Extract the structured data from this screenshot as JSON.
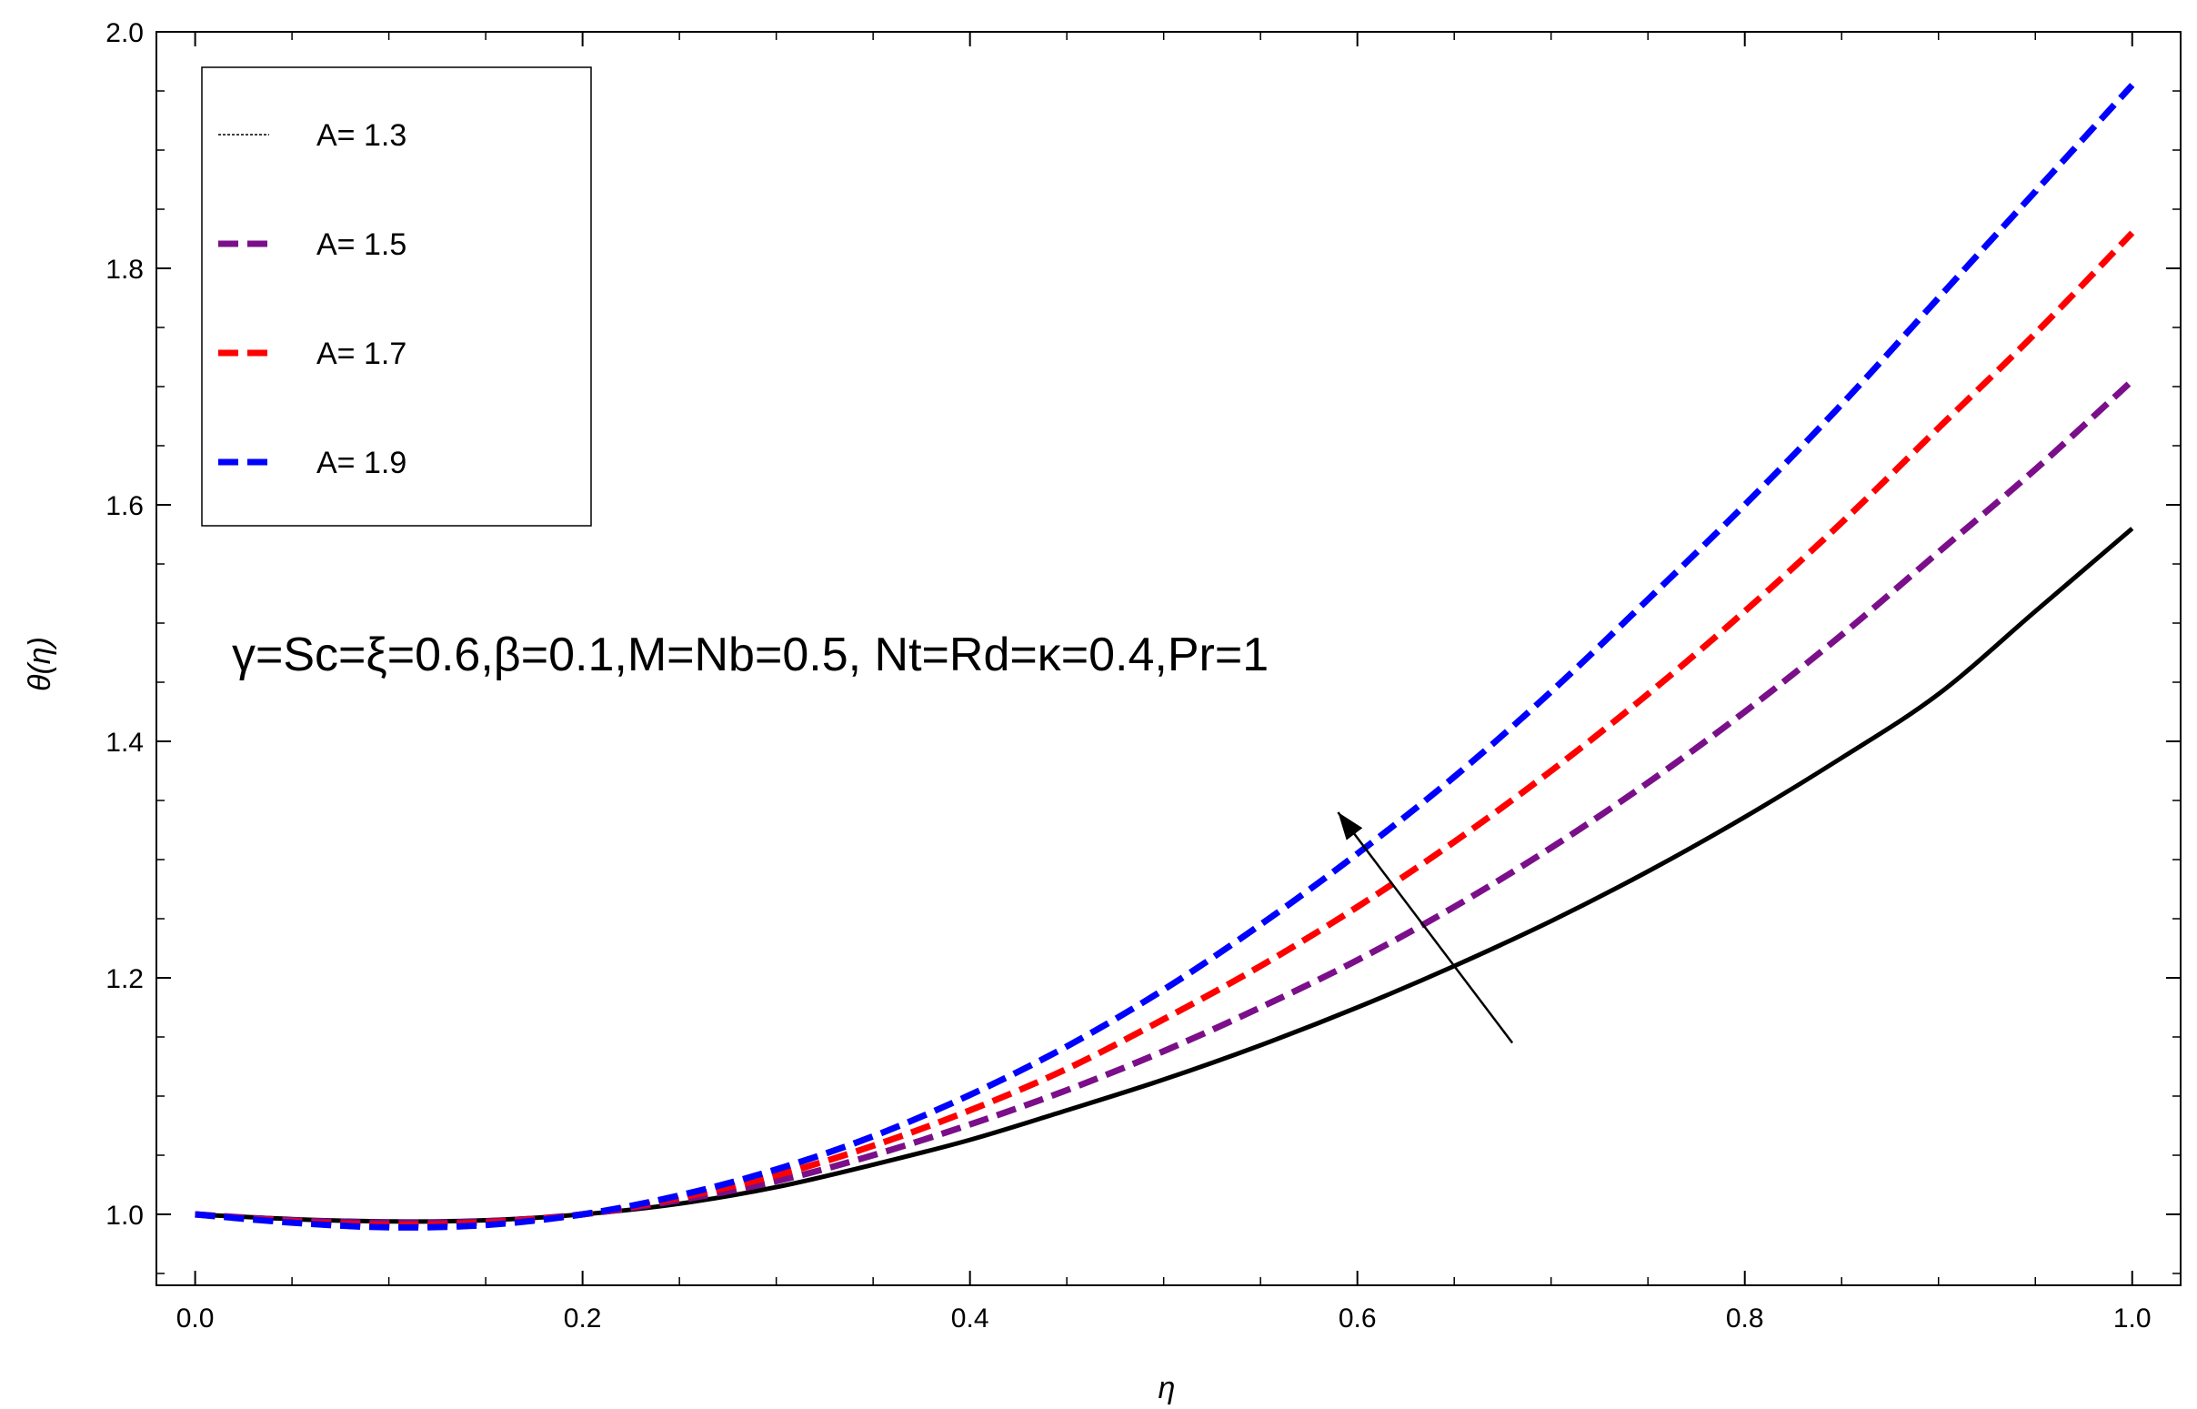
{
  "chart_data": {
    "type": "line",
    "title": "",
    "xlabel": "η",
    "ylabel": "θ(η)",
    "xlim": [
      -0.02,
      1.025
    ],
    "ylim": [
      0.94,
      2.0
    ],
    "x_ticks": [
      "0.0",
      "0.2",
      "0.4",
      "0.6",
      "0.8",
      "1.0"
    ],
    "y_ticks": [
      "1.0",
      "1.2",
      "1.4",
      "1.6",
      "1.8",
      "2.0"
    ],
    "grid": false,
    "legend_position": "top-left",
    "annotation": "γ=Sc=ξ=0.6,β=0.1,M=Nb=0.5, Nt=Rd=κ=0.4,Pr=1",
    "arrow": {
      "from": [
        0.68,
        1.145
      ],
      "to": [
        0.59,
        1.34
      ],
      "meaning": "A increasing"
    },
    "x": [
      0.0,
      0.05,
      0.1,
      0.15,
      0.2,
      0.25,
      0.3,
      0.35,
      0.4,
      0.45,
      0.5,
      0.55,
      0.6,
      0.65,
      0.7,
      0.75,
      0.8,
      0.85,
      0.9,
      0.95,
      1.0
    ],
    "series": [
      {
        "name": "A= 1.3",
        "color": "#000000",
        "style": "solid",
        "values": [
          1.0,
          0.996,
          0.994,
          0.995,
          1.0,
          1.009,
          1.023,
          1.042,
          1.063,
          1.088,
          1.114,
          1.143,
          1.175,
          1.21,
          1.248,
          1.29,
          1.336,
          1.386,
          1.44,
          1.51,
          1.58
        ]
      },
      {
        "name": "A= 1.5",
        "color": "#7B0F8A",
        "style": "dashed",
        "values": [
          1.0,
          0.995,
          0.993,
          0.994,
          1.0,
          1.012,
          1.028,
          1.05,
          1.076,
          1.105,
          1.138,
          1.175,
          1.215,
          1.26,
          1.31,
          1.365,
          1.425,
          1.49,
          1.56,
          1.63,
          1.705
        ]
      },
      {
        "name": "A= 1.7",
        "color": "#FF0000",
        "style": "dashed",
        "values": [
          1.0,
          0.994,
          0.991,
          0.993,
          1.0,
          1.014,
          1.033,
          1.058,
          1.088,
          1.123,
          1.165,
          1.21,
          1.26,
          1.315,
          1.375,
          1.44,
          1.51,
          1.585,
          1.665,
          1.745,
          1.83
        ]
      },
      {
        "name": "A= 1.9",
        "color": "#0000FF",
        "style": "dashed",
        "values": [
          1.0,
          0.993,
          0.989,
          0.991,
          1.0,
          1.016,
          1.038,
          1.066,
          1.101,
          1.142,
          1.19,
          1.245,
          1.305,
          1.37,
          1.442,
          1.52,
          1.6,
          1.685,
          1.775,
          1.865,
          1.955
        ]
      }
    ]
  }
}
